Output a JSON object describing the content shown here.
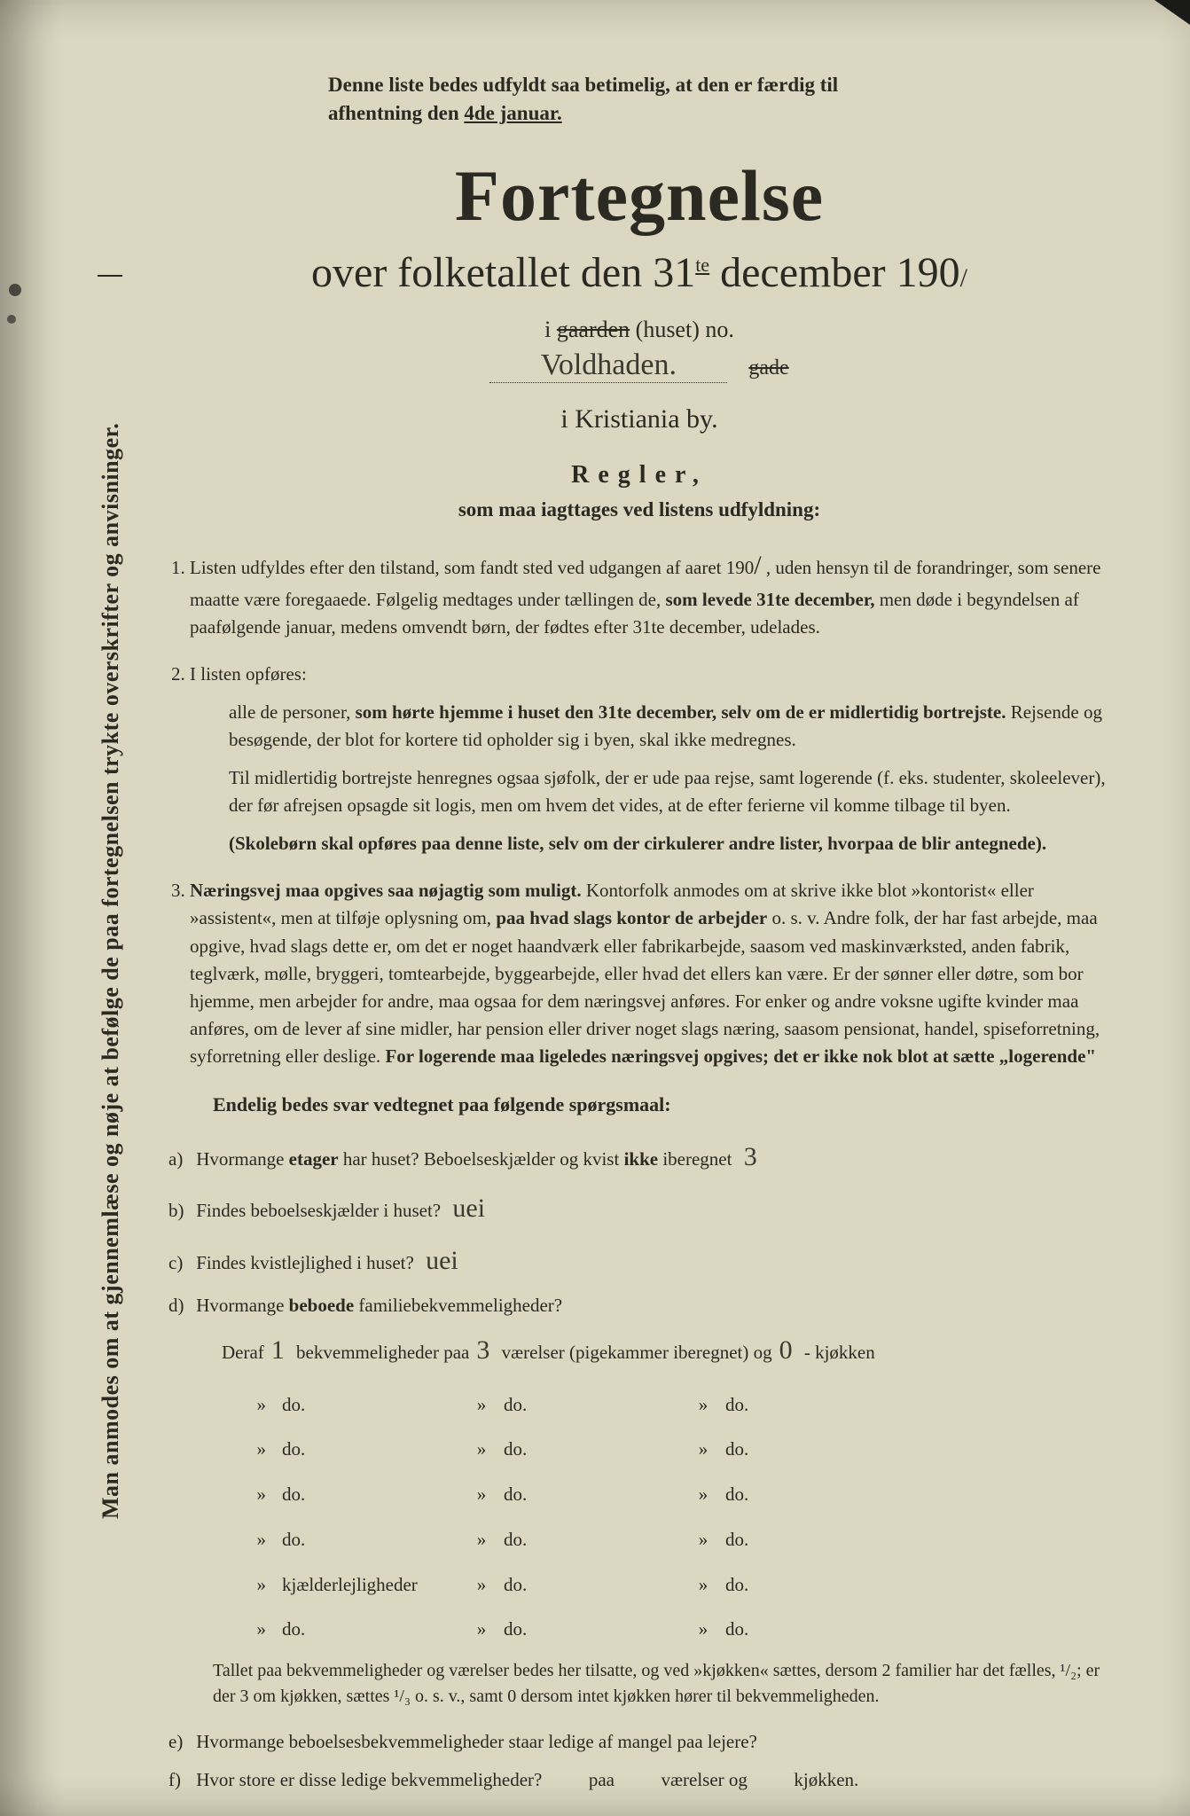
{
  "top_note_line1": "Denne liste bedes udfyldt saa betimelig, at den er færdig til",
  "top_note_line2_a": "afhentning den ",
  "top_note_line2_b": "4de januar.",
  "title": "Fortegnelse",
  "subtitle_a": "over folketallet den 31",
  "subtitle_sup": "te",
  "subtitle_b": " december 190",
  "subtitle_hand": "/",
  "line_gaarden_a": "i ",
  "line_gaarden_strike": "gaarden",
  "line_gaarden_b": " (huset) no.",
  "hand_address": "Voldhaden.",
  "gade_label": "gade",
  "city": "i Kristiania by.",
  "regler": "Regler,",
  "regler_sub": "som maa iagttages ved listens udfyldning:",
  "rule1_a": "Listen udfyldes efter den tilstand, som fandt sted ved udgangen af aaret 190",
  "rule1_hand": "/",
  "rule1_b": " , uden hensyn til de forandringer, som senere maatte være foregaaede. Følgelig medtages under tællingen de, ",
  "rule1_bold": "som levede 31te december,",
  "rule1_c": " men døde i begyndelsen af paafølgende januar, medens omvendt børn, der fødtes efter 31te december, udelades.",
  "rule2_a": "I listen opføres:",
  "rule2_b1": "alle de personer, ",
  "rule2_bold1": "som hørte hjemme i huset den 31te december, selv om de er midlertidig bortrejste.",
  "rule2_b2": " Rejsende og besøgende, der blot for kortere tid opholder sig i byen, skal ikke medregnes.",
  "rule2_c": "Til midlertidig bortrejste henregnes ogsaa sjøfolk, der er ude paa rejse, samt logerende (f. eks. studenter, skoleelever), der før afrejsen opsagde sit logis, men om hvem det vides, at de efter ferierne vil komme tilbage til byen.",
  "rule2_bold2": "(Skolebørn skal opføres paa denne liste, selv om der cirkulerer andre lister, hvorpaa de blir antegnede).",
  "rule3_bold1": "Næringsvej maa opgives saa nøjagtig som muligt.",
  "rule3_a": " Kontorfolk anmodes om at skrive ikke blot »kontorist« eller »assistent«, men at tilføje oplysning om, ",
  "rule3_bold2": "paa hvad slags kontor de arbejder",
  "rule3_b": " o. s. v. Andre folk, der har fast arbejde, maa opgive, hvad slags dette er, om det er noget haandværk eller fabrikarbejde, saasom ved maskinværksted, anden fabrik, teglværk, mølle, bryggeri, tomtearbejde, byggearbejde, eller hvad det ellers kan være. Er der sønner eller døtre, som bor hjemme, men arbejder for andre, maa ogsaa for dem næringsvej anføres. For enker og andre voksne ugifte kvinder maa anføres, om de lever af sine midler, har pension eller driver noget slags næring, saasom pensionat, handel, spiseforretning, syforretning eller deslige. ",
  "rule3_bold3": "For logerende maa ligeledes næringsvej opgives; det er ikke nok blot at sætte „logerende\"",
  "endelig": "Endelig bedes svar vedtegnet paa følgende spørgsmaal:",
  "qa_label": "a)",
  "qa_text1": "Hvormange ",
  "qa_bold": "etager",
  "qa_text2": " har huset? Beboelseskjælder og kvist ",
  "qa_bold2": "ikke",
  "qa_text3": " iberegnet",
  "qa_ans": "3",
  "qb_label": "b)",
  "qb_text": "Findes beboelseskjælder i huset?",
  "qb_ans": "uei",
  "qc_label": "c)",
  "qc_text": "Findes kvistlejlighed i huset?",
  "qc_ans": "uei",
  "qd_label": "d)",
  "qd_text1": "Hvormange ",
  "qd_bold": "beboede",
  "qd_text2": " familiebekvemmeligheder?",
  "deraf_a": "Deraf",
  "deraf_hand1": "1",
  "deraf_b": " bekvemmeligheder paa",
  "deraf_hand2": "3",
  "deraf_c": " værelser (pigekammer iberegnet) og",
  "deraf_hand3": "0",
  "deraf_d": " - kjøkken",
  "table": {
    "rows": [
      {
        "c1": "»",
        "c2": "do.",
        "c3": "»",
        "c4": "do.",
        "c5": "»",
        "c6": "do."
      },
      {
        "c1": "»",
        "c2": "do.",
        "c3": "»",
        "c4": "do.",
        "c5": "»",
        "c6": "do."
      },
      {
        "c1": "»",
        "c2": "do.",
        "c3": "»",
        "c4": "do.",
        "c5": "»",
        "c6": "do."
      },
      {
        "c1": "»",
        "c2": "do.",
        "c3": "»",
        "c4": "do.",
        "c5": "»",
        "c6": "do."
      },
      {
        "c1": "»",
        "c2": "kjælderlejligheder",
        "c3": "»",
        "c4": "do.",
        "c5": "»",
        "c6": "do."
      },
      {
        "c1": "»",
        "c2": "do.",
        "c3": "»",
        "c4": "do.",
        "c5": "»",
        "c6": "do."
      }
    ]
  },
  "small_note": "Tallet paa bekvemmeligheder og værelser bedes her tilsatte, og ved »kjøkken« sættes, dersom 2 familier har det fælles, ¹/₂; er der 3 om kjøkken, sættes ¹/₃ o. s. v., samt 0 dersom intet kjøkken hører til bekvemmeligheden.",
  "qe_label": "e)",
  "qe_text": "Hvormange beboelsesbekvemmeligheder staar ledige af mangel paa lejere?",
  "qf_label": "f)",
  "qf_text": "Hvor store er disse ledige bekvemmeligheder?          paa          værelser og          kjøkken.",
  "vertical_text": "Man anmodes om at gjennemlæse og nøje at befølge de paa fortegnelsen trykte overskrifter og anvisninger."
}
